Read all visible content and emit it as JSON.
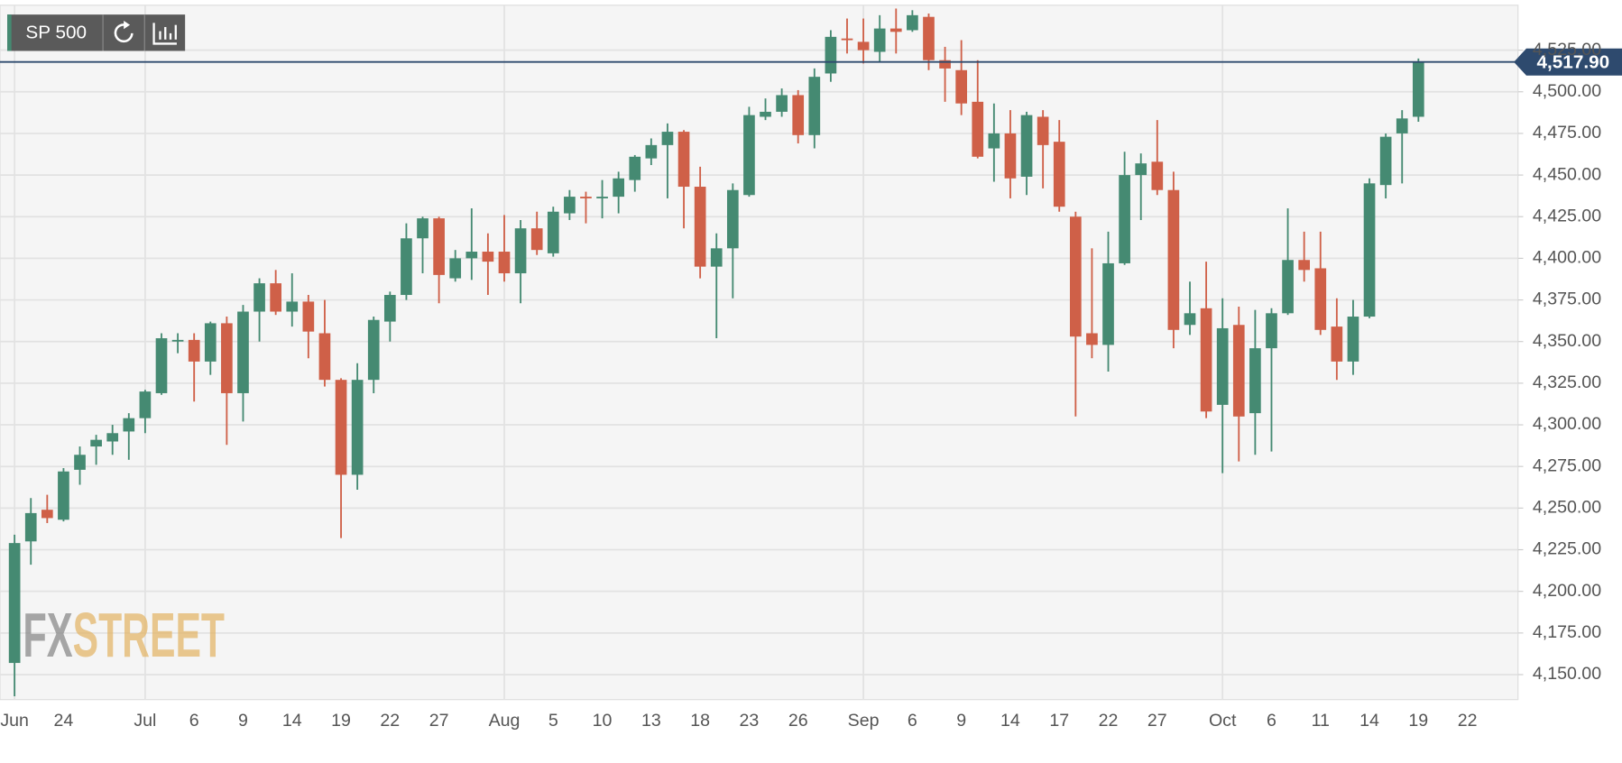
{
  "chart_data": {
    "type": "candlestick",
    "symbol": "SP 500",
    "watermark_left": "FX",
    "watermark_right": "STREET",
    "categories": [
      "Jun",
      null,
      null,
      "24",
      null,
      null,
      null,
      null,
      "Jul",
      null,
      null,
      "6",
      null,
      null,
      "9",
      null,
      null,
      "14",
      null,
      null,
      "19",
      null,
      null,
      "22",
      null,
      null,
      "27",
      null,
      null,
      null,
      "Aug",
      null,
      null,
      "5",
      null,
      null,
      "10",
      null,
      null,
      "13",
      null,
      null,
      "18",
      null,
      null,
      "23",
      null,
      null,
      "26",
      null,
      null,
      null,
      "Sep",
      null,
      null,
      "6",
      null,
      null,
      "9",
      null,
      null,
      "14",
      null,
      null,
      "17",
      null,
      null,
      "22",
      null,
      null,
      "27",
      null,
      null,
      null,
      "Oct",
      null,
      null,
      "6",
      null,
      null,
      "11",
      null,
      null,
      "14",
      null,
      null,
      "19",
      null,
      null,
      "22"
    ],
    "open": [
      4157,
      4230,
      4249,
      4243,
      4273,
      4287,
      4290,
      4296,
      4304,
      4319,
      4350,
      4351,
      4338,
      4361,
      4319,
      4368,
      4385,
      4368,
      4374,
      4355,
      4327,
      4270,
      4327,
      4362,
      4378,
      4412,
      4424,
      4388,
      4400,
      4404,
      4404,
      4391,
      4418,
      4403,
      4427,
      4437,
      4436,
      4437,
      4447,
      4460,
      4468,
      4476,
      4443,
      4395,
      4406,
      4438,
      4485,
      4488,
      4498,
      4474,
      4511,
      4532,
      4530,
      4524,
      4538,
      4537,
      4545,
      4519,
      4513,
      4494,
      4466,
      4475,
      4449,
      4485,
      4470,
      4425,
      4355,
      4348,
      4397,
      4450,
      4458,
      4441,
      4360,
      4370,
      4312,
      4360,
      4307,
      4346,
      4367,
      4399,
      4394,
      4359,
      4338,
      4365,
      4444,
      4475,
      4485,
      null,
      null,
      null
    ],
    "high": [
      4234,
      4256,
      4258,
      4274,
      4287,
      4294,
      4300,
      4307,
      4321,
      4355,
      4355,
      4355,
      4362,
      4365,
      4372,
      4388,
      4393,
      4391,
      4378,
      4375,
      4328,
      4337,
      4365,
      4380,
      4421,
      4425,
      4425,
      4405,
      4430,
      4415,
      4426,
      4423,
      4428,
      4431,
      4441,
      4440,
      4447,
      4452,
      4462,
      4472,
      4481,
      4477,
      4455,
      4415,
      4445,
      4491,
      4496,
      4502,
      4501,
      4514,
      4537,
      4544,
      4544,
      4546,
      4550,
      4549,
      4547,
      4527,
      4531,
      4519,
      4493,
      4489,
      4488,
      4489,
      4483,
      4428,
      4406,
      4416,
      4464,
      4463,
      4483,
      4452,
      4386,
      4398,
      4376,
      4371,
      4369,
      4370,
      4430,
      4416,
      4416,
      4376,
      4375,
      4448,
      4475,
      4489,
      4520,
      null,
      null,
      null
    ],
    "low": [
      4137,
      4216,
      4241,
      4242,
      4264,
      4276,
      4282,
      4279,
      4295,
      4318,
      4343,
      4314,
      4330,
      4288,
      4302,
      4350,
      4366,
      4359,
      4340,
      4323,
      4232,
      4261,
      4319,
      4350,
      4375,
      4391,
      4373,
      4386,
      4387,
      4378,
      4386,
      4373,
      4402,
      4401,
      4423,
      4421,
      4424,
      4427,
      4440,
      4456,
      4436,
      4418,
      4388,
      4352,
      4376,
      4437,
      4483,
      4485,
      4469,
      4466,
      4506,
      4523,
      4517,
      4518,
      4523,
      4536,
      4513,
      4494,
      4486,
      4460,
      4446,
      4436,
      4438,
      4442,
      4428,
      4305,
      4340,
      4332,
      4396,
      4423,
      4438,
      4346,
      4354,
      4304,
      4271,
      4278,
      4282,
      4284,
      4366,
      4386,
      4354,
      4327,
      4330,
      4364,
      4436,
      4445,
      4482,
      null,
      null,
      null
    ],
    "close": [
      4229,
      4247,
      4244,
      4272,
      4282,
      4291,
      4295,
      4304,
      4320,
      4352,
      4351,
      4338,
      4361,
      4319,
      4368,
      4385,
      4368,
      4374,
      4356,
      4327,
      4270,
      4327,
      4363,
      4378,
      4412,
      4424,
      4390,
      4400,
      4404,
      4398,
      4391,
      4418,
      4405,
      4428,
      4437,
      4436,
      4437,
      4448,
      4461,
      4468,
      4476,
      4443,
      4395,
      4406,
      4441,
      4486,
      4488,
      4498,
      4474,
      4509,
      4533,
      4531,
      4525,
      4538,
      4536,
      4546,
      4519,
      4514,
      4493,
      4461,
      4475,
      4448,
      4486,
      4468,
      4431,
      4353,
      4348,
      4397,
      4450,
      4457,
      4441,
      4357,
      4367,
      4308,
      4358,
      4305,
      4346,
      4367,
      4399,
      4393,
      4357,
      4338,
      4365,
      4445,
      4473,
      4484,
      4517.9,
      null,
      null,
      null
    ],
    "up_color": "#458a72",
    "down_color": "#cf6048",
    "last_price": {
      "value": 4517.9,
      "label": "4,517.90"
    },
    "last_price_color": "#2e4a6e",
    "ylim": [
      4135,
      4552
    ],
    "yticks": [
      {
        "value": 4150,
        "label": "4,150.00"
      },
      {
        "value": 4175,
        "label": "4,175.00"
      },
      {
        "value": 4200,
        "label": "4,200.00"
      },
      {
        "value": 4225,
        "label": "4,225.00"
      },
      {
        "value": 4250,
        "label": "4,250.00"
      },
      {
        "value": 4275,
        "label": "4,275.00"
      },
      {
        "value": 4300,
        "label": "4,300.00"
      },
      {
        "value": 4325,
        "label": "4,325.00"
      },
      {
        "value": 4350,
        "label": "4,350.00"
      },
      {
        "value": 4375,
        "label": "4,375.00"
      },
      {
        "value": 4400,
        "label": "4,400.00"
      },
      {
        "value": 4425,
        "label": "4,425.00"
      },
      {
        "value": 4450,
        "label": "4,450.00"
      },
      {
        "value": 4475,
        "label": "4,475.00"
      },
      {
        "value": 4500,
        "label": "4,500.00"
      },
      {
        "value": 4525,
        "label": "4,525.00"
      }
    ],
    "grid": true
  }
}
